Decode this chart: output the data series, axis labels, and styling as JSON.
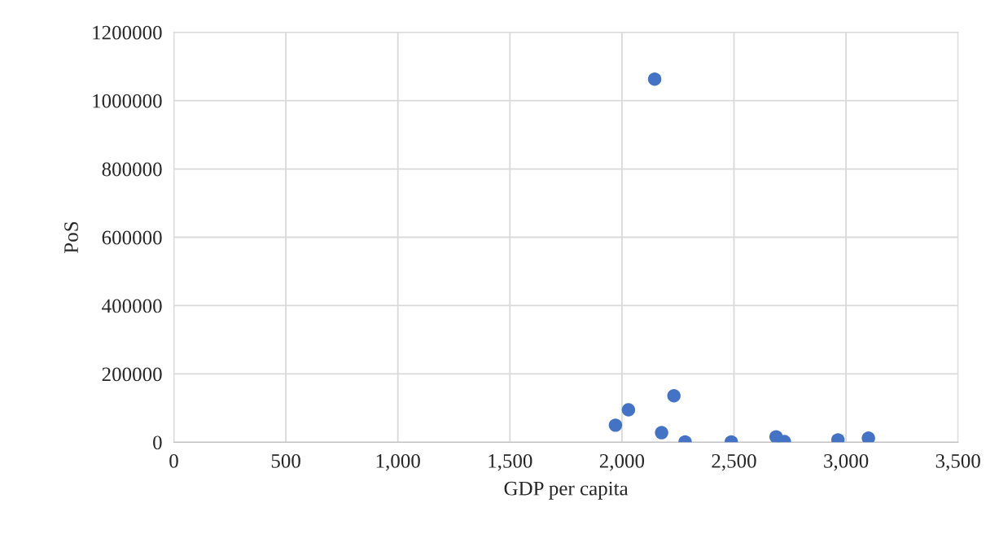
{
  "chart_data": {
    "type": "scatter",
    "xlabel": "GDP per capita",
    "ylabel": "PoS",
    "x": [
      2146,
      1971,
      2029,
      2232,
      2177,
      2282,
      2488,
      2688,
      2725,
      2964,
      3100
    ],
    "series": [
      {
        "color": "#4472c4",
        "values": [
          1063000,
          50000,
          95000,
          136000,
          28000,
          1000,
          1000,
          16000,
          2000,
          7000,
          12000
        ]
      }
    ],
    "xlim": [
      0,
      3500
    ],
    "xticks": [
      {
        "value": 0,
        "label": "0"
      },
      {
        "value": 500,
        "label": "500"
      },
      {
        "value": 1000,
        "label": "1,000"
      },
      {
        "value": 1500,
        "label": "1,500"
      },
      {
        "value": 2000,
        "label": "2,000"
      },
      {
        "value": 2500,
        "label": "2,500"
      },
      {
        "value": 3000,
        "label": "3,000"
      },
      {
        "value": 3500,
        "label": "3,500"
      }
    ],
    "ylim": [
      0,
      1200000
    ],
    "yticks": [
      0,
      200000,
      400000,
      600000,
      800000,
      1000000,
      1200000
    ],
    "grid": true,
    "marker": "circle"
  }
}
